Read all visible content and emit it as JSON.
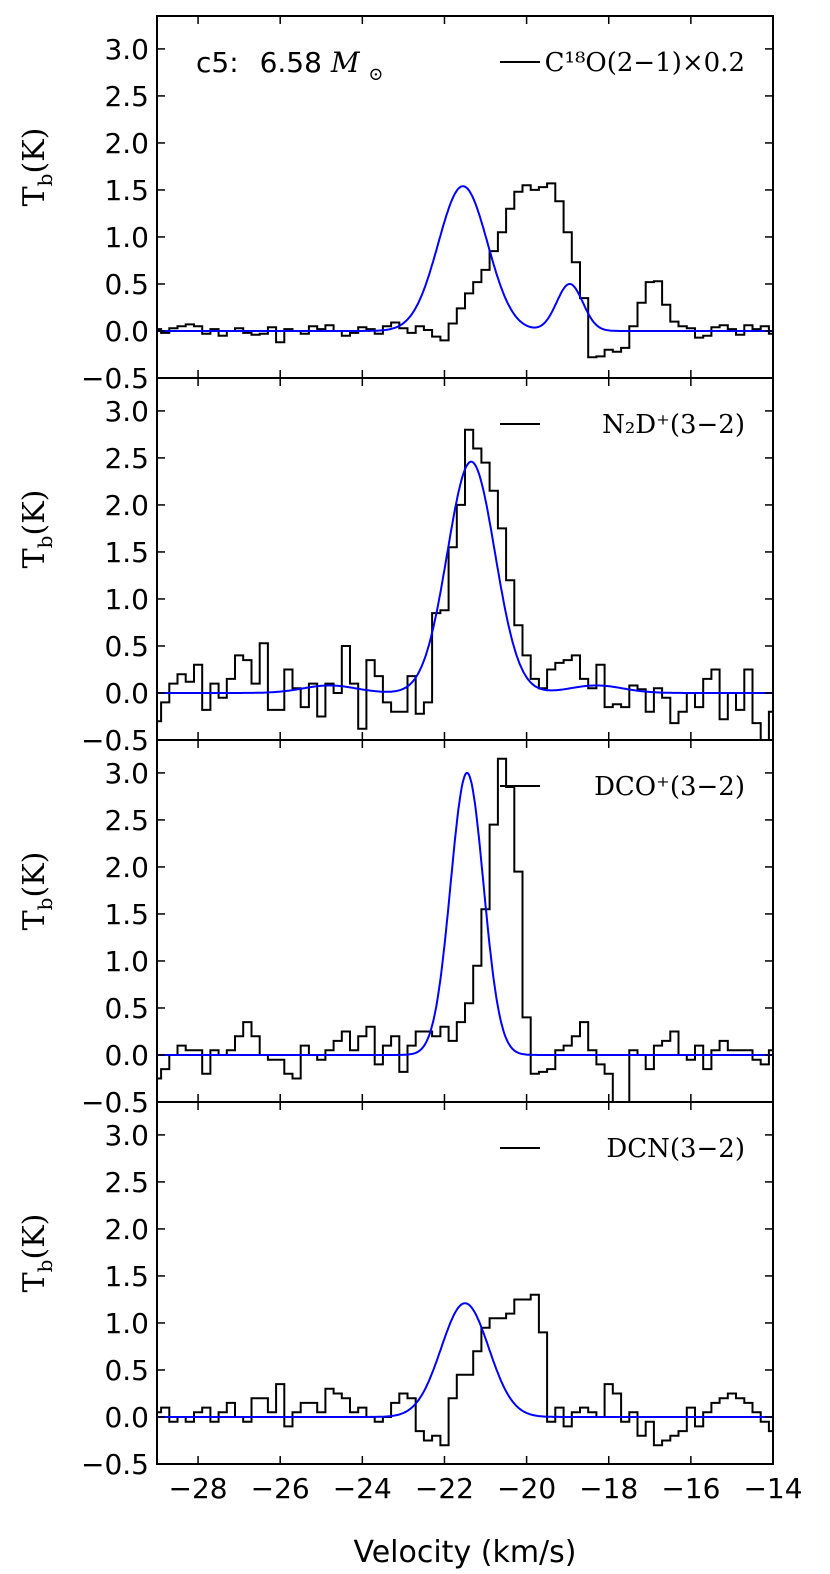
{
  "figure": {
    "xlabel": "Velocity (km/s)",
    "annotation_prefix": "c5:",
    "annotation_value": "6.58",
    "annotation_unit_symbol": "M",
    "annotation_unit_sub": "⊙"
  },
  "chart_data": [
    {
      "type": "line",
      "legend": "C¹⁸O(2−1)×0.2",
      "ylabel_main": "T",
      "ylabel_sub": "b",
      "ylabel_unit": "(K)",
      "xlim": [
        -29,
        -14
      ],
      "ylim": [
        -0.5,
        3.35
      ],
      "yticks": [
        "−0.5",
        "0.0",
        "0.5",
        "1.0",
        "1.5",
        "2.0",
        "2.5",
        "3.0"
      ],
      "colors": {
        "observed": "#000000",
        "fit": "#0000ff"
      },
      "observed": {
        "x_start": -29.0,
        "x_step": 0.2,
        "y": [
          0.02,
          -0.02,
          0.03,
          0.05,
          0.07,
          0.05,
          -0.03,
          0.02,
          -0.05,
          0.0,
          0.03,
          -0.02,
          -0.04,
          -0.03,
          0.04,
          -0.12,
          0.02,
          0.0,
          -0.03,
          0.05,
          0.02,
          0.06,
          0.0,
          -0.05,
          -0.02,
          0.04,
          0.02,
          -0.03,
          0.05,
          0.09,
          0.03,
          -0.02,
          0.05,
          0.01,
          -0.06,
          -0.1,
          0.08,
          0.24,
          0.4,
          0.52,
          0.65,
          0.85,
          1.05,
          1.3,
          1.48,
          1.55,
          1.5,
          1.53,
          1.57,
          1.38,
          1.05,
          0.73,
          0.35,
          -0.28,
          -0.27,
          -0.2,
          -0.22,
          -0.18,
          0.05,
          0.3,
          0.52,
          0.53,
          0.28,
          0.1,
          0.05,
          0.03,
          -0.07,
          -0.05,
          0.04,
          0.06,
          0.02,
          -0.04,
          0.06,
          0.02,
          0.05,
          -0.03,
          0.03,
          -0.02,
          0.04,
          0.0,
          -0.04
        ]
      },
      "fit": {
        "components": [
          {
            "amp": 1.54,
            "center": -21.55,
            "sigma": 0.6
          },
          {
            "amp": 0.5,
            "center": -18.95,
            "sigma": 0.32
          }
        ]
      }
    },
    {
      "type": "line",
      "legend": "N₂D⁺(3−2)",
      "ylabel_main": "T",
      "ylabel_sub": "b",
      "ylabel_unit": "(K)",
      "xlim": [
        -29,
        -14
      ],
      "ylim": [
        -0.5,
        3.35
      ],
      "yticks": [
        "−0.5",
        "0.0",
        "0.5",
        "1.0",
        "1.5",
        "2.0",
        "2.5",
        "3.0"
      ],
      "colors": {
        "observed": "#000000",
        "fit": "#0000ff"
      },
      "observed": {
        "x_start": -29.0,
        "x_step": 0.2,
        "y": [
          -0.3,
          -0.1,
          0.1,
          0.2,
          0.12,
          0.3,
          -0.18,
          0.1,
          -0.05,
          0.15,
          0.4,
          0.35,
          0.1,
          0.53,
          -0.18,
          -0.18,
          0.25,
          0.05,
          -0.15,
          0.1,
          -0.25,
          0.1,
          0.0,
          0.5,
          0.1,
          -0.38,
          0.35,
          0.18,
          -0.1,
          -0.2,
          -0.2,
          0.18,
          -0.22,
          -0.1,
          0.85,
          0.88,
          1.55,
          2.0,
          2.8,
          2.6,
          2.45,
          2.15,
          1.75,
          1.2,
          0.72,
          0.4,
          0.15,
          0.05,
          0.25,
          0.32,
          0.35,
          0.4,
          0.15,
          0.05,
          0.3,
          -0.15,
          -0.12,
          -0.15,
          0.08,
          0.04,
          -0.2,
          0.05,
          -0.05,
          -0.32,
          -0.2,
          0.0,
          -0.15,
          0.15,
          0.25,
          -0.28,
          0.0,
          -0.18,
          0.25,
          -0.32,
          -0.65,
          -0.2,
          0.05,
          0.0,
          -0.2,
          0.05,
          0.3
        ]
      },
      "fit": {
        "components": [
          {
            "amp": 2.46,
            "center": -21.35,
            "sigma": 0.58
          },
          {
            "amp": 0.08,
            "center": -24.8,
            "sigma": 0.65
          },
          {
            "amp": 0.08,
            "center": -18.3,
            "sigma": 0.65
          }
        ]
      }
    },
    {
      "type": "line",
      "legend": "DCO⁺(3−2)",
      "ylabel_main": "T",
      "ylabel_sub": "b",
      "ylabel_unit": "(K)",
      "xlim": [
        -29,
        -14
      ],
      "ylim": [
        -0.5,
        3.35
      ],
      "yticks": [
        "−0.5",
        "0.0",
        "0.5",
        "1.0",
        "1.5",
        "2.0",
        "2.5",
        "3.0"
      ],
      "colors": {
        "observed": "#000000",
        "fit": "#0000ff"
      },
      "observed": {
        "x_start": -29.0,
        "x_step": 0.2,
        "y": [
          -0.25,
          -0.15,
          0.0,
          0.1,
          0.05,
          0.05,
          -0.2,
          0.05,
          0.0,
          0.05,
          0.2,
          0.35,
          0.2,
          0.0,
          -0.05,
          -0.05,
          -0.2,
          -0.25,
          0.1,
          0.0,
          -0.05,
          0.05,
          0.15,
          0.25,
          0.05,
          0.2,
          0.3,
          -0.1,
          0.1,
          0.2,
          -0.18,
          0.1,
          0.25,
          0.25,
          0.2,
          0.3,
          0.15,
          0.35,
          0.55,
          0.95,
          1.55,
          2.45,
          3.15,
          2.85,
          1.95,
          0.4,
          -0.2,
          -0.18,
          -0.15,
          0.05,
          0.1,
          0.2,
          0.35,
          0.05,
          -0.1,
          -0.2,
          -0.5,
          -0.65,
          0.05,
          0.0,
          -0.15,
          0.1,
          0.15,
          0.25,
          0.0,
          -0.05,
          0.1,
          -0.15,
          0.05,
          0.15,
          0.05,
          0.05,
          0.05,
          -0.05,
          -0.1,
          0.05,
          -0.15,
          0.0,
          -0.15,
          0.3,
          0.05
        ]
      },
      "fit": {
        "components": [
          {
            "amp": 3.0,
            "center": -21.45,
            "sigma": 0.4
          }
        ]
      }
    },
    {
      "type": "line",
      "legend": "DCN(3−2)",
      "ylabel_main": "T",
      "ylabel_sub": "b",
      "ylabel_unit": "(K)",
      "xlim": [
        -29,
        -14
      ],
      "ylim": [
        -0.5,
        3.35
      ],
      "xticks": [
        "−28",
        "−26",
        "−24",
        "−22",
        "−20",
        "−18",
        "−16",
        "−14"
      ],
      "yticks": [
        "−0.5",
        "0.0",
        "0.5",
        "1.0",
        "1.5",
        "2.0",
        "2.5",
        "3.0"
      ],
      "colors": {
        "observed": "#000000",
        "fit": "#0000ff"
      },
      "observed": {
        "x_start": -29.0,
        "x_step": 0.2,
        "y": [
          0.05,
          0.1,
          -0.05,
          0.0,
          -0.05,
          0.05,
          0.1,
          -0.05,
          0.05,
          0.15,
          0.0,
          -0.05,
          0.2,
          0.2,
          0.05,
          0.35,
          -0.1,
          0.05,
          0.15,
          0.15,
          0.05,
          0.3,
          0.25,
          0.2,
          0.05,
          0.1,
          0.0,
          -0.05,
          0.0,
          0.15,
          0.25,
          0.2,
          -0.15,
          -0.25,
          -0.2,
          -0.3,
          0.2,
          0.45,
          0.45,
          0.7,
          0.95,
          1.05,
          1.05,
          1.1,
          1.25,
          1.25,
          1.3,
          0.9,
          -0.05,
          0.1,
          -0.1,
          0.05,
          0.1,
          0.05,
          0.0,
          0.35,
          0.25,
          -0.05,
          0.05,
          -0.2,
          -0.05,
          -0.3,
          -0.25,
          -0.2,
          -0.15,
          0.1,
          -0.1,
          0.05,
          0.15,
          0.2,
          0.25,
          0.2,
          0.15,
          0.05,
          -0.05,
          -0.15,
          -0.05,
          -0.1,
          0.0,
          0.0,
          0.05
        ]
      },
      "fit": {
        "components": [
          {
            "amp": 1.21,
            "center": -21.5,
            "sigma": 0.58
          }
        ]
      }
    }
  ]
}
